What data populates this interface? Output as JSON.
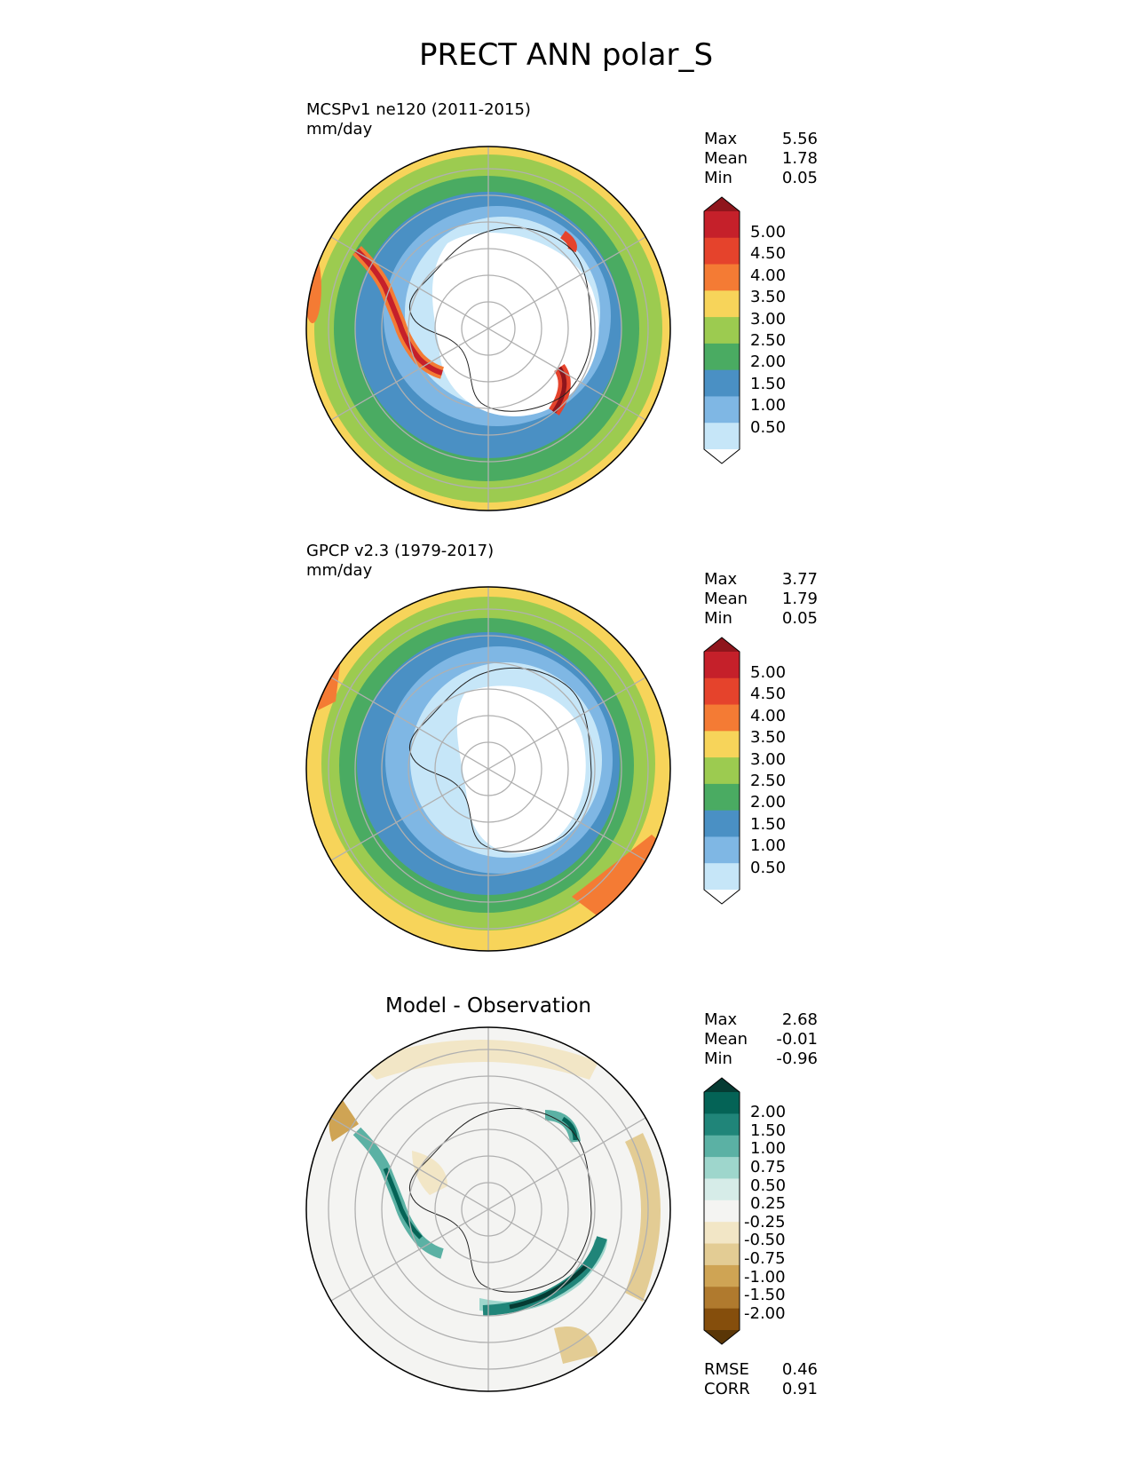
{
  "figure": {
    "title": "PRECT ANN polar_S"
  },
  "colors": {
    "precip": [
      "#ffffff",
      "#c6e6f8",
      "#7fb7e4",
      "#4a90c4",
      "#4aab62",
      "#9ccb50",
      "#f7d45a",
      "#f47b34",
      "#e5432c",
      "#c5202a",
      "#8f151c"
    ],
    "diff": [
      "#5a3607",
      "#854e0c",
      "#b07a2e",
      "#cfa454",
      "#e3cc94",
      "#f2e6c6",
      "#f4f4f2",
      "#d6ece8",
      "#9ed6cc",
      "#5bb1a4",
      "#208579",
      "#046356",
      "#053b33"
    ]
  },
  "chart_data": [
    {
      "type": "heatmap",
      "projection": "south-polar-stereographic",
      "name": "MCSPv1 ne120 (2011-2015)",
      "units": "mm/day",
      "stats": [
        {
          "label": "Max",
          "value": "5.56"
        },
        {
          "label": "Mean",
          "value": "1.78"
        },
        {
          "label": "Min",
          "value": "0.05"
        }
      ],
      "colorbar": {
        "levels": [
          "5.00",
          "4.50",
          "4.00",
          "3.50",
          "3.00",
          "2.50",
          "2.00",
          "1.50",
          "1.00",
          "0.50"
        ],
        "extend": "both"
      }
    },
    {
      "type": "heatmap",
      "projection": "south-polar-stereographic",
      "name": "GPCP v2.3 (1979-2017)",
      "units": "mm/day",
      "stats": [
        {
          "label": "Max",
          "value": "3.77"
        },
        {
          "label": "Mean",
          "value": "1.79"
        },
        {
          "label": "Min",
          "value": "0.05"
        }
      ],
      "colorbar": {
        "levels": [
          "5.00",
          "4.50",
          "4.00",
          "3.50",
          "3.00",
          "2.50",
          "2.00",
          "1.50",
          "1.00",
          "0.50"
        ],
        "extend": "both"
      }
    },
    {
      "type": "heatmap",
      "projection": "south-polar-stereographic",
      "title": "Model - Observation",
      "stats": [
        {
          "label": "Max",
          "value": "2.68"
        },
        {
          "label": "Mean",
          "value": "-0.01"
        },
        {
          "label": "Min",
          "value": "-0.96"
        }
      ],
      "colorbar": {
        "levels": [
          "2.00",
          "1.50",
          "1.00",
          "0.75",
          "0.50",
          "0.25",
          "-0.25",
          "-0.50",
          "-0.75",
          "-1.00",
          "-1.50",
          "-2.00"
        ],
        "extend": "both"
      },
      "metrics": [
        {
          "label": "RMSE",
          "value": "0.46"
        },
        {
          "label": "CORR",
          "value": "0.91"
        }
      ]
    }
  ]
}
